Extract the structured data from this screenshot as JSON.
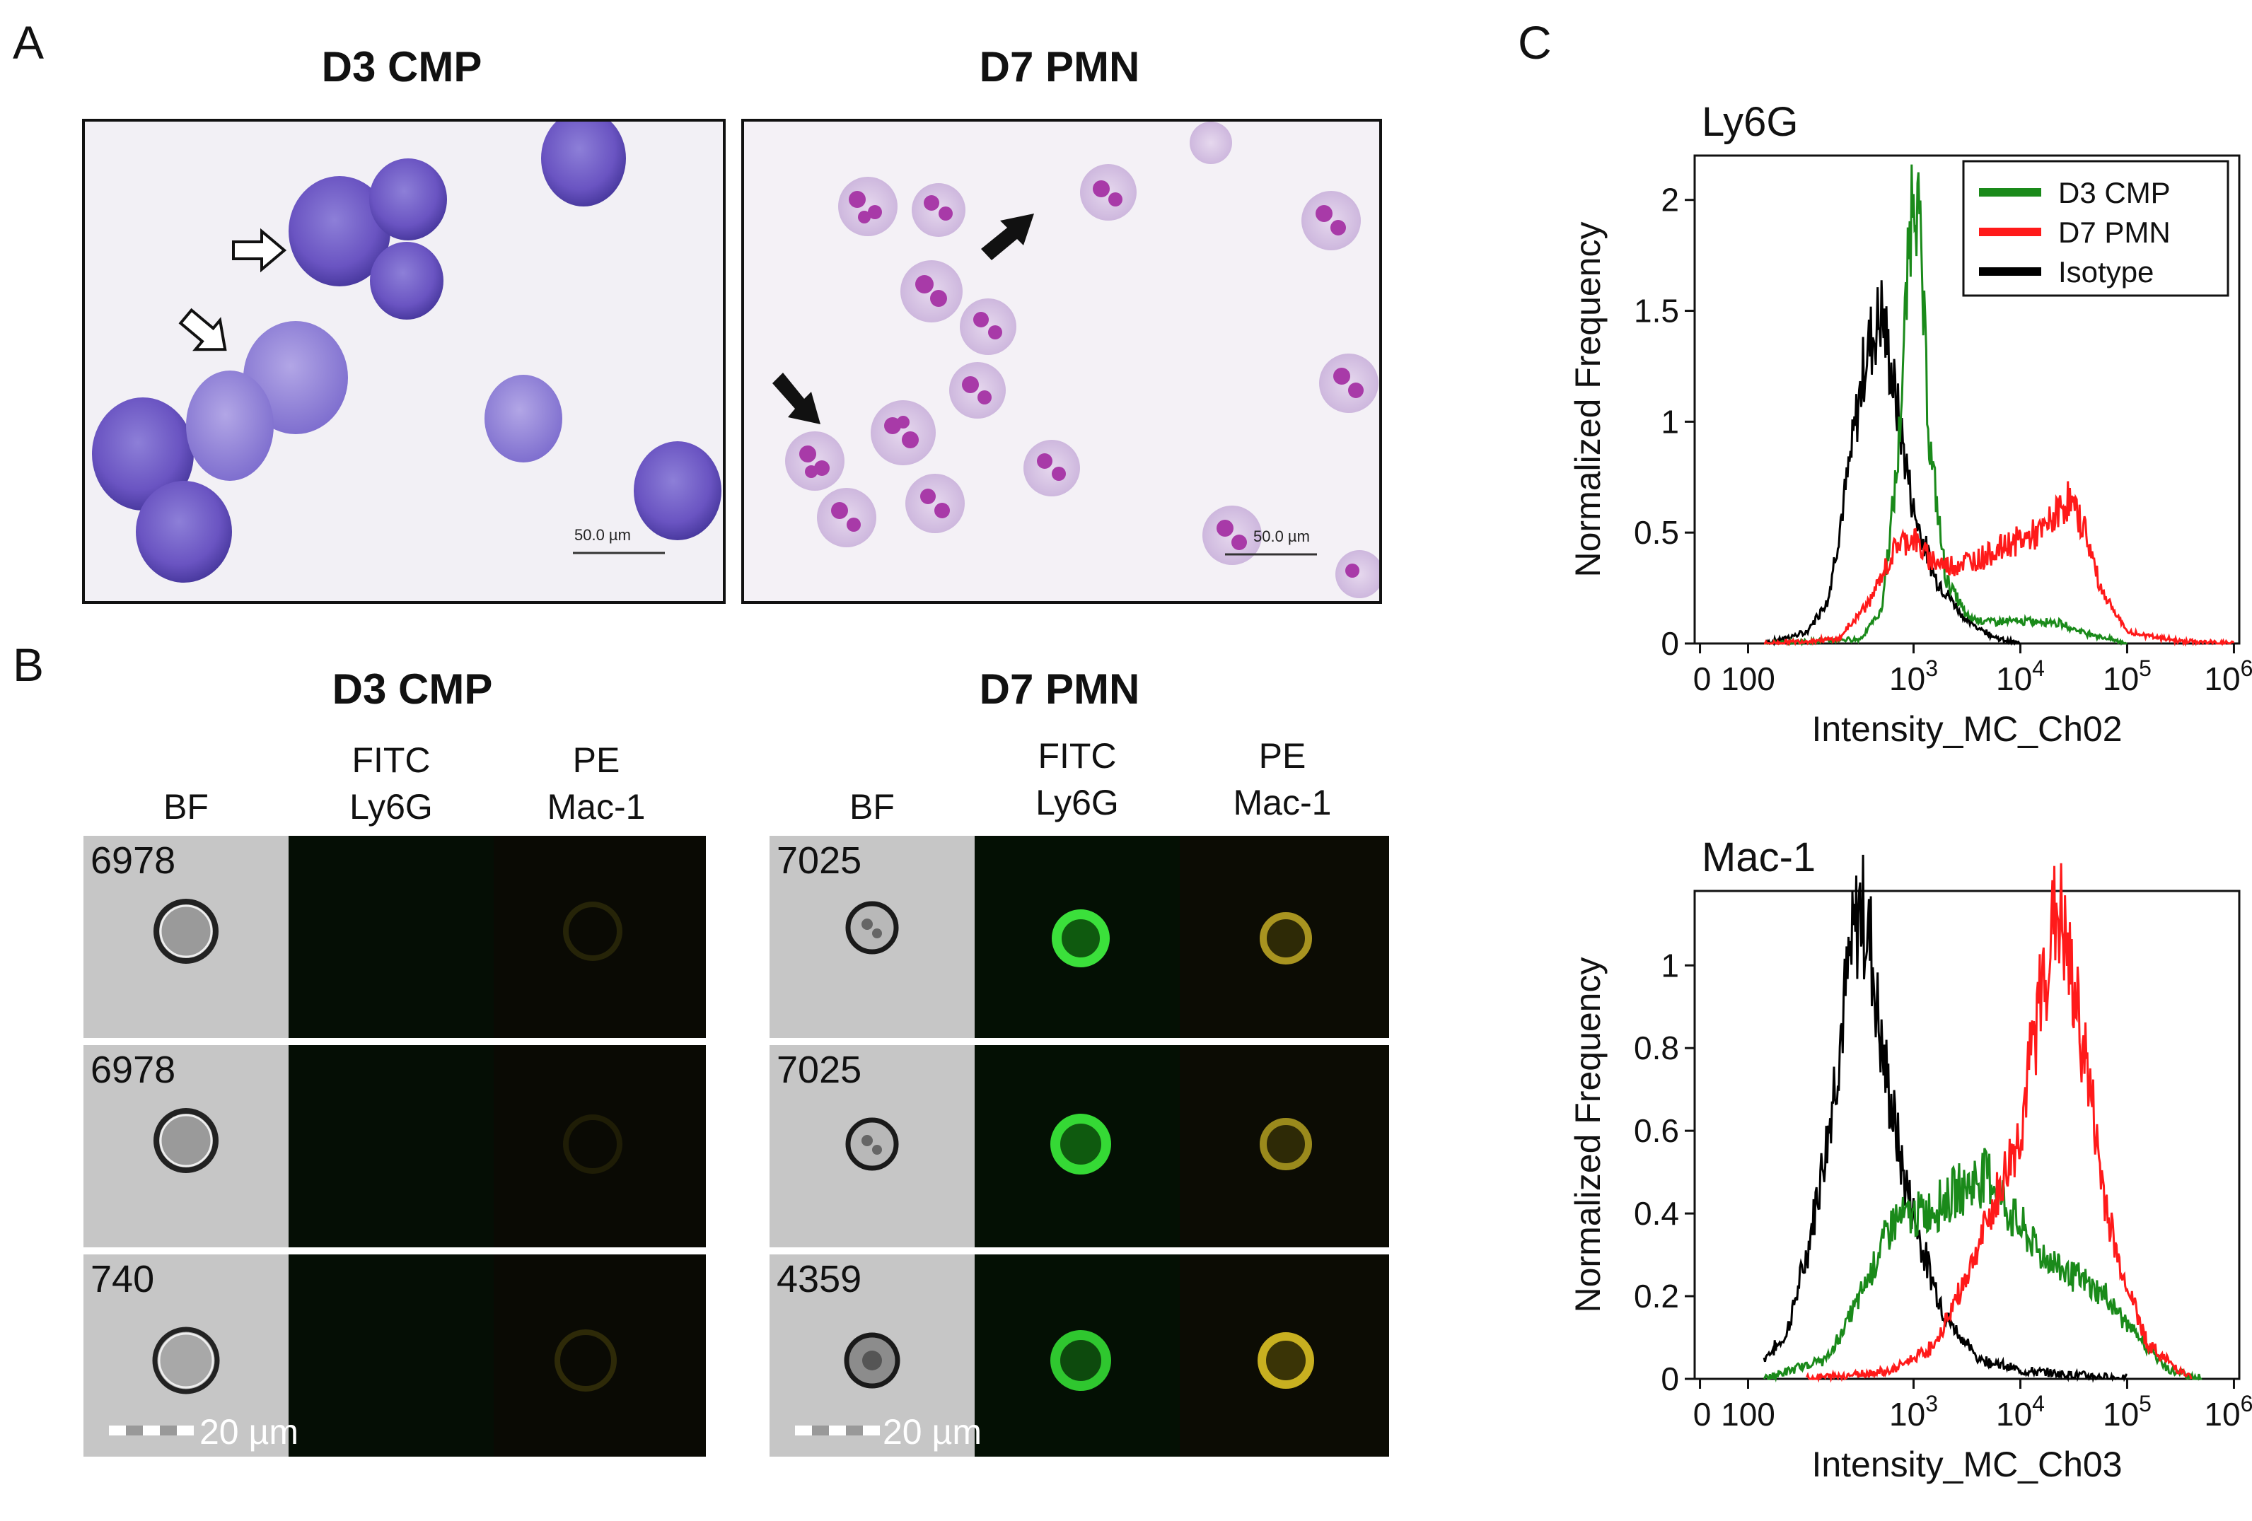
{
  "panel_a": {
    "letter": "A",
    "left_title": "D3 CMP",
    "right_title": "D7 PMN",
    "left_scale": "50.0 µm",
    "right_scale": "50.0 µm"
  },
  "panel_b": {
    "letter": "B",
    "left_title": "D3 CMP",
    "right_title": "D7 PMN",
    "channels": {
      "bf": "BF",
      "fitc_top": "FITC",
      "fitc_bottom": "Ly6G",
      "pe_top": "PE",
      "pe_bottom": "Mac-1"
    },
    "left_cells": [
      "6978",
      "6978",
      "740"
    ],
    "right_cells": [
      "7025",
      "7025",
      "4359"
    ],
    "scale_label": "20 µm"
  },
  "panel_c": {
    "letter": "C",
    "colors": {
      "d3": "#1a8a1a",
      "d7": "#ff1a1a",
      "iso": "#000000"
    }
  },
  "chart_data": [
    {
      "type": "line",
      "title": "Ly6G",
      "xlabel": "Intensity_MC_Ch02",
      "ylabel": "Normalized Frequency",
      "xscale": "log",
      "xtick_labels": [
        "0",
        "100",
        "10",
        "10",
        "10",
        "10"
      ],
      "xtick_exponents": [
        "",
        "",
        "3",
        "4",
        "5",
        "6"
      ],
      "yticks": [
        "0",
        "0.5",
        "1",
        "1.5",
        "2"
      ],
      "ylim": [
        0,
        2.2
      ],
      "legend": {
        "placement": "top-right",
        "entries": [
          "D3 CMP",
          "D7 PMN",
          "Isotype"
        ]
      },
      "series": [
        {
          "name": "D3 CMP",
          "x": [
            1.6,
            2.5,
            2.7,
            2.85,
            2.95,
            3.0,
            3.05,
            3.15,
            3.3,
            3.5,
            3.7,
            4.0,
            4.3,
            4.6,
            5.0
          ],
          "y": [
            0,
            0.02,
            0.15,
            0.8,
            1.7,
            2.18,
            1.9,
            0.9,
            0.3,
            0.12,
            0.1,
            0.1,
            0.1,
            0.05,
            0
          ]
        },
        {
          "name": "D7 PMN",
          "x": [
            1.6,
            2.3,
            2.6,
            2.85,
            3.0,
            3.1,
            3.3,
            3.6,
            3.9,
            4.2,
            4.45,
            4.6,
            4.75,
            5.0,
            5.5,
            6.0
          ],
          "y": [
            0,
            0.02,
            0.2,
            0.45,
            0.48,
            0.4,
            0.35,
            0.38,
            0.45,
            0.5,
            0.65,
            0.52,
            0.25,
            0.05,
            0.01,
            0
          ]
        },
        {
          "name": "Isotype",
          "x": [
            1.6,
            2.0,
            2.2,
            2.4,
            2.55,
            2.7,
            2.8,
            2.9,
            3.0,
            3.2,
            3.5,
            3.8,
            4.0
          ],
          "y": [
            0,
            0.05,
            0.2,
            0.8,
            1.3,
            1.5,
            1.2,
            0.9,
            0.6,
            0.3,
            0.1,
            0.02,
            0
          ]
        }
      ]
    },
    {
      "type": "line",
      "title": "Mac-1",
      "xlabel": "Intensity_MC_Ch03",
      "ylabel": "Normalized Frequency",
      "xscale": "log",
      "xtick_labels": [
        "0",
        "100",
        "10",
        "10",
        "10",
        "10"
      ],
      "xtick_exponents": [
        "",
        "",
        "3",
        "4",
        "5",
        "6"
      ],
      "yticks": [
        "0",
        "0.2",
        "0.4",
        "0.6",
        "0.8",
        "1"
      ],
      "ylim": [
        0,
        1.18
      ],
      "series": [
        {
          "name": "D3 CMP",
          "x": [
            1.6,
            2.2,
            2.5,
            2.8,
            3.1,
            3.4,
            3.7,
            3.9,
            4.2,
            4.5,
            4.8,
            5.1,
            5.4,
            5.7
          ],
          "y": [
            0,
            0.05,
            0.2,
            0.38,
            0.4,
            0.45,
            0.5,
            0.4,
            0.3,
            0.25,
            0.2,
            0.1,
            0.02,
            0
          ]
        },
        {
          "name": "D7 PMN",
          "x": [
            2.0,
            2.8,
            3.2,
            3.5,
            3.8,
            4.0,
            4.2,
            4.35,
            4.45,
            4.6,
            4.75,
            4.9,
            5.2,
            5.6
          ],
          "y": [
            0,
            0.02,
            0.08,
            0.25,
            0.45,
            0.6,
            0.95,
            1.15,
            1.0,
            0.8,
            0.5,
            0.3,
            0.08,
            0
          ]
        },
        {
          "name": "Isotype",
          "x": [
            1.6,
            1.8,
            2.0,
            2.2,
            2.4,
            2.5,
            2.6,
            2.7,
            2.9,
            3.1,
            3.3,
            3.6,
            4.0,
            4.5,
            5.0
          ],
          "y": [
            0.05,
            0.1,
            0.3,
            0.6,
            1.0,
            1.15,
            1.05,
            0.8,
            0.5,
            0.3,
            0.15,
            0.05,
            0.02,
            0.01,
            0
          ]
        }
      ]
    }
  ]
}
